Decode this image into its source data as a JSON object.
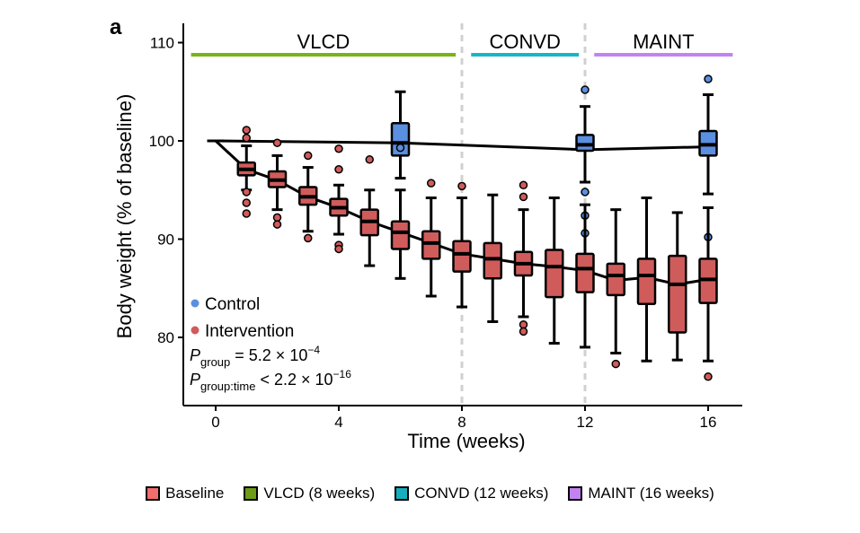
{
  "chart_data": {
    "type": "boxplot",
    "panel_label": "a",
    "xlabel": "Time (weeks)",
    "ylabel": "Body weight (% of baseline)",
    "xlim": [
      -1,
      17
    ],
    "ylim": [
      74,
      111
    ],
    "x_ticks": [
      0,
      4,
      8,
      12,
      16
    ],
    "y_ticks": [
      80,
      90,
      100,
      110
    ],
    "phase_dividers": [
      8,
      12
    ],
    "phases": [
      {
        "label": "VLCD",
        "start": -0.8,
        "end": 7.8,
        "color": "#7ab317"
      },
      {
        "label": "CONVD",
        "start": 8.3,
        "end": 11.8,
        "color": "#17b6c7"
      },
      {
        "label": "MAINT",
        "start": 12.3,
        "end": 16.8,
        "color": "#c183f2"
      }
    ],
    "legend": [
      {
        "label": "Control",
        "color": "#5b8fe0"
      },
      {
        "label": "Intervention",
        "color": "#d05b5b"
      }
    ],
    "stats": {
      "p_group_sym": "P",
      "p_group_sub": "group",
      "p_group_val": " = 5.2 × 10",
      "p_group_exp": "−4",
      "p_time_sym": "P",
      "p_time_sub": "group:time",
      "p_time_val": " < 2.2 × 10",
      "p_time_exp": "−16"
    },
    "series": [
      {
        "name": "Control",
        "color": "#5b8fe0",
        "boxes": [
          {
            "x": 6,
            "whislo": 96.2,
            "q1": 98.5,
            "med": 99.8,
            "q3": 101.8,
            "whishi": 105.0,
            "outliers": [
              99.3
            ]
          },
          {
            "x": 12,
            "whislo": 95.8,
            "q1": 99.0,
            "med": 99.6,
            "q3": 100.6,
            "whishi": 103.5,
            "outliers": [
              105.2,
              94.8,
              92.4,
              90.6
            ]
          },
          {
            "x": 16,
            "whislo": 94.6,
            "q1": 98.5,
            "med": 99.6,
            "q3": 101.0,
            "whishi": 104.7,
            "outliers": [
              106.3,
              90.2
            ]
          }
        ],
        "line": [
          [
            0,
            100
          ],
          [
            6,
            99.8
          ],
          [
            12,
            99.1
          ],
          [
            16,
            99.4
          ]
        ]
      },
      {
        "name": "Intervention",
        "color": "#d05b5b",
        "boxes": [
          {
            "x": 0,
            "whislo": 100,
            "q1": 100,
            "med": 100,
            "q3": 100,
            "whishi": 100,
            "outliers": []
          },
          {
            "x": 1,
            "whislo": 95.0,
            "q1": 96.5,
            "med": 97.1,
            "q3": 97.8,
            "whishi": 99.5,
            "outliers": [
              101.1,
              100.3,
              94.8,
              93.7,
              92.6
            ]
          },
          {
            "x": 2,
            "whislo": 93.0,
            "q1": 95.3,
            "med": 96.0,
            "q3": 96.9,
            "whishi": 98.5,
            "outliers": [
              99.8,
              92.2,
              91.5
            ]
          },
          {
            "x": 3,
            "whislo": 90.8,
            "q1": 93.5,
            "med": 94.3,
            "q3": 95.3,
            "whishi": 97.3,
            "outliers": [
              98.5,
              90.1
            ]
          },
          {
            "x": 4,
            "whislo": 90.5,
            "q1": 92.4,
            "med": 93.2,
            "q3": 94.1,
            "whishi": 95.5,
            "outliers": [
              99.2,
              97.1,
              89.4,
              89.0
            ]
          },
          {
            "x": 5,
            "whislo": 87.3,
            "q1": 90.4,
            "med": 91.8,
            "q3": 93.0,
            "whishi": 95.0,
            "outliers": [
              98.1
            ]
          },
          {
            "x": 6,
            "whislo": 86.0,
            "q1": 89.0,
            "med": 90.7,
            "q3": 91.8,
            "whishi": 95.0,
            "outliers": []
          },
          {
            "x": 7,
            "whislo": 84.2,
            "q1": 88.0,
            "med": 89.6,
            "q3": 90.8,
            "whishi": 94.2,
            "outliers": [
              95.7
            ]
          },
          {
            "x": 8,
            "whislo": 83.1,
            "q1": 86.7,
            "med": 88.5,
            "q3": 89.8,
            "whishi": 94.2,
            "outliers": [
              95.4
            ]
          },
          {
            "x": 9,
            "whislo": 81.6,
            "q1": 86.0,
            "med": 88.0,
            "q3": 89.6,
            "whishi": 94.5,
            "outliers": []
          },
          {
            "x": 10,
            "whislo": 82.1,
            "q1": 86.3,
            "med": 87.5,
            "q3": 88.7,
            "whishi": 93.0,
            "outliers": [
              95.5,
              94.3,
              81.3,
              80.6
            ]
          },
          {
            "x": 11,
            "whislo": 79.4,
            "q1": 84.1,
            "med": 87.2,
            "q3": 88.9,
            "whishi": 94.2,
            "outliers": []
          },
          {
            "x": 12,
            "whislo": 79.0,
            "q1": 84.6,
            "med": 87.0,
            "q3": 88.5,
            "whishi": 93.5,
            "outliers": []
          },
          {
            "x": 13,
            "whislo": 78.4,
            "q1": 84.3,
            "med": 86.3,
            "q3": 87.5,
            "whishi": 93.0,
            "outliers": [
              77.3
            ]
          },
          {
            "x": 14,
            "whislo": 77.6,
            "q1": 83.4,
            "med": 86.3,
            "q3": 88.0,
            "whishi": 94.2,
            "outliers": []
          },
          {
            "x": 15,
            "whislo": 77.7,
            "q1": 80.5,
            "med": 85.4,
            "q3": 88.3,
            "whishi": 92.7,
            "outliers": []
          },
          {
            "x": 16,
            "whislo": 77.6,
            "q1": 83.5,
            "med": 85.9,
            "q3": 88.0,
            "whishi": 93.2,
            "outliers": [
              76.0
            ]
          }
        ],
        "line": [
          [
            0,
            100
          ],
          [
            1,
            97.1
          ],
          [
            2,
            96.0
          ],
          [
            3,
            94.3
          ],
          [
            4,
            93.2
          ],
          [
            5,
            91.8
          ],
          [
            6,
            90.7
          ],
          [
            7,
            89.6
          ],
          [
            8,
            88.5
          ],
          [
            9,
            88.0
          ],
          [
            10,
            87.5
          ],
          [
            11,
            87.2
          ],
          [
            12,
            86.8
          ],
          [
            13,
            85.8
          ],
          [
            14,
            86.1
          ],
          [
            15,
            85.4
          ],
          [
            16,
            85.9
          ]
        ]
      }
    ]
  },
  "bottom_legend": [
    {
      "label": "Baseline",
      "color": "#f26d6d"
    },
    {
      "label": "VLCD (8 weeks)",
      "color": "#6e9c16"
    },
    {
      "label": "CONVD (12 weeks)",
      "color": "#17aebd"
    },
    {
      "label": "MAINT (16 weeks)",
      "color": "#c283f0"
    }
  ]
}
